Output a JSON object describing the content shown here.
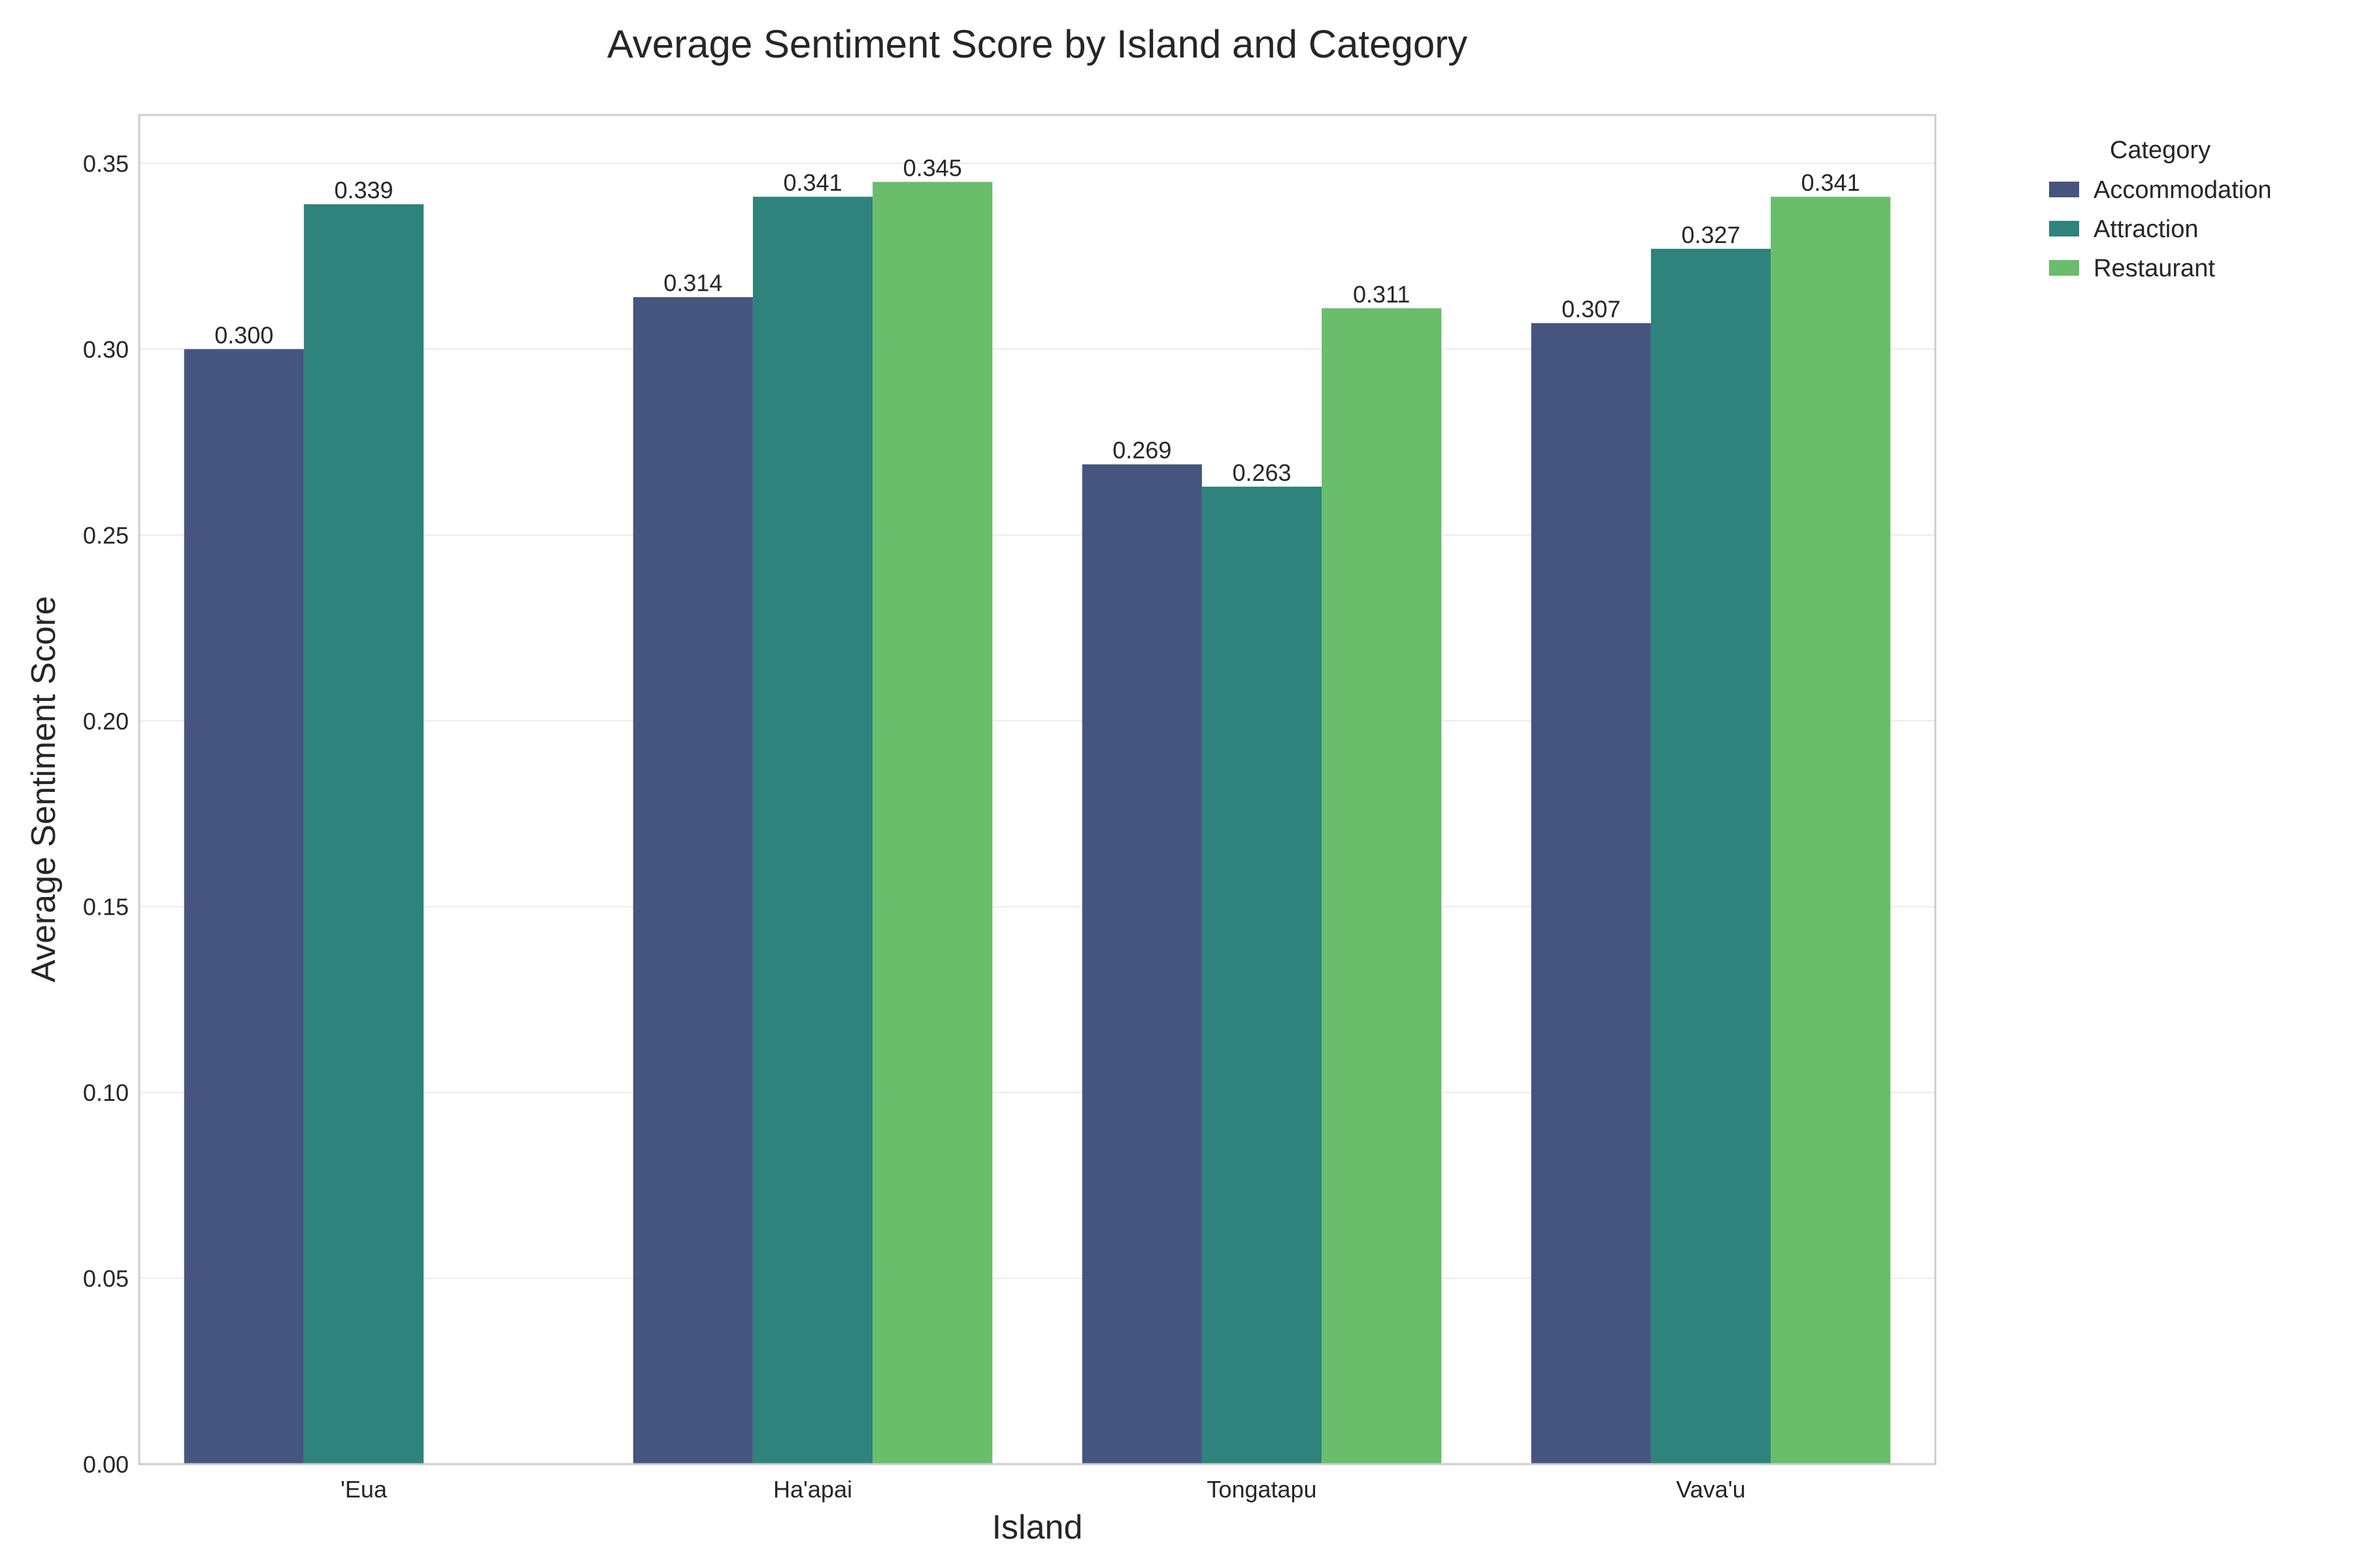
{
  "chart_data": {
    "type": "bar",
    "title": "Average Sentiment Score by Island and Category",
    "xlabel": "Island",
    "ylabel": "Average Sentiment Score",
    "categories": [
      "'Eua",
      "Ha'apai",
      "Tongatapu",
      "Vava'u"
    ],
    "series": [
      {
        "name": "Accommodation",
        "color": "#46557f",
        "values": [
          0.3,
          0.314,
          0.269,
          0.307
        ]
      },
      {
        "name": "Attraction",
        "color": "#2e837d",
        "values": [
          0.339,
          0.341,
          0.263,
          0.327
        ]
      },
      {
        "name": "Restaurant",
        "color": "#6abd6b",
        "values": [
          null,
          0.345,
          0.311,
          0.341
        ]
      }
    ],
    "value_label_decimals": 3,
    "ylim": [
      0,
      0.363
    ],
    "yticks": [
      "0.00",
      "0.05",
      "0.10",
      "0.15",
      "0.20",
      "0.25",
      "0.30",
      "0.35"
    ],
    "grid": true,
    "legend": {
      "title": "Category",
      "placement": "outside-top-right"
    }
  }
}
